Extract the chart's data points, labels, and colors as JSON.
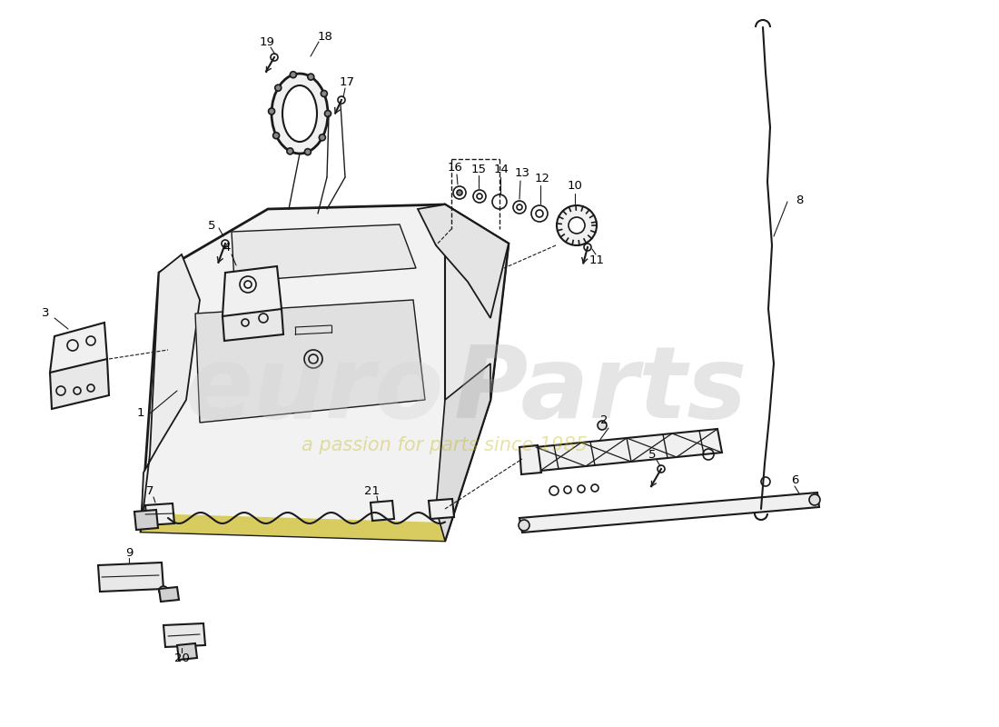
{
  "background_color": "#ffffff",
  "line_color": "#1a1a1a",
  "watermark1": "euroParts",
  "watermark2": "a passion for parts since 1985",
  "yellow_color": "#d4c840"
}
